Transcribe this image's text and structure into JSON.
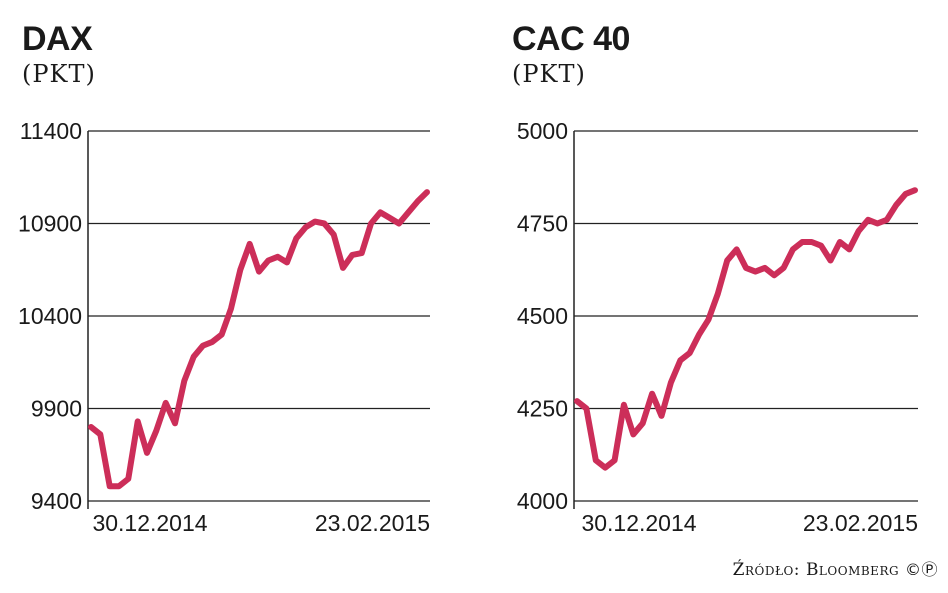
{
  "chart_data": [
    {
      "type": "line",
      "title": "DAX",
      "unit": "(PKT)",
      "ylim": [
        9400,
        11400
      ],
      "yticks": [
        "11400",
        "10900",
        "10400",
        "9900",
        "9400"
      ],
      "ytick_values": [
        11400,
        10900,
        10400,
        9900,
        9400
      ],
      "x_labels": [
        "30.12.2014",
        "23.02.2015"
      ],
      "grid": true,
      "line_color": "#cc2e59",
      "series": [
        {
          "values": [
            9800,
            9760,
            9480,
            9480,
            9520,
            9830,
            9660,
            9780,
            9930,
            9820,
            10050,
            10180,
            10240,
            10260,
            10300,
            10440,
            10650,
            10790,
            10640,
            10700,
            10720,
            10690,
            10820,
            10880,
            10910,
            10900,
            10840,
            10660,
            10730,
            10740,
            10900,
            10960,
            10930,
            10900,
            10960,
            11020,
            11070
          ]
        }
      ]
    },
    {
      "type": "line",
      "title": "CAC 40",
      "unit": "(PKT)",
      "ylim": [
        4000,
        5000
      ],
      "yticks": [
        "5000",
        "4750",
        "4500",
        "4250",
        "4000"
      ],
      "ytick_values": [
        5000,
        4750,
        4500,
        4250,
        4000
      ],
      "x_labels": [
        "30.12.2014",
        "23.02.2015"
      ],
      "grid": true,
      "line_color": "#cc2e59",
      "series": [
        {
          "values": [
            4270,
            4250,
            4110,
            4090,
            4110,
            4260,
            4180,
            4210,
            4290,
            4230,
            4320,
            4380,
            4400,
            4450,
            4490,
            4560,
            4650,
            4680,
            4630,
            4620,
            4630,
            4610,
            4630,
            4680,
            4700,
            4700,
            4690,
            4650,
            4700,
            4680,
            4730,
            4760,
            4750,
            4760,
            4800,
            4830,
            4840
          ]
        }
      ]
    }
  ],
  "source": "Źródło: Bloomberg",
  "source_mark": "©Ⓟ"
}
